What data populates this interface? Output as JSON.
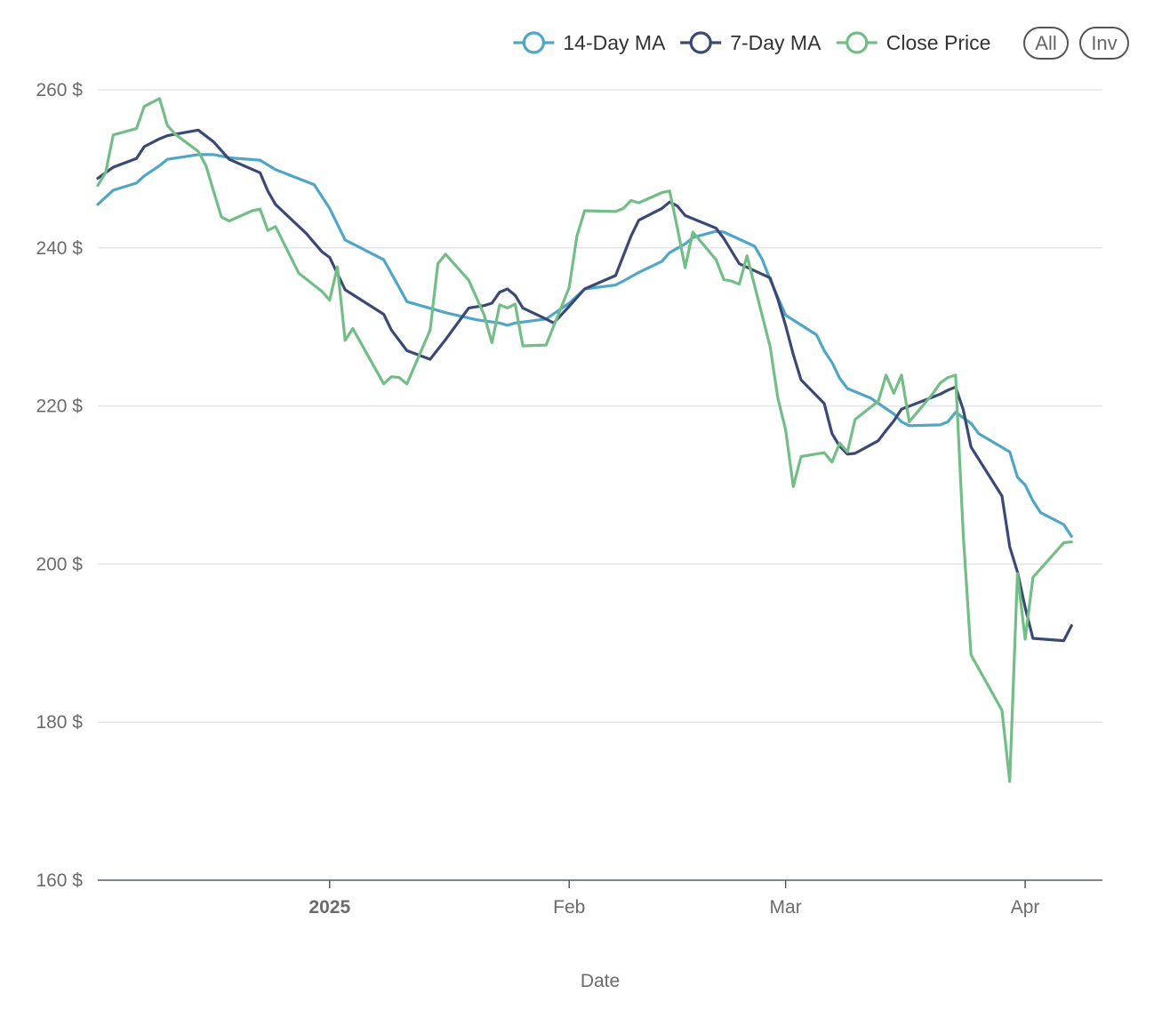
{
  "chart_data": {
    "type": "line",
    "xlabel": "Date",
    "ylabel": "",
    "ylim": [
      160,
      260
    ],
    "y_ticks": [
      160,
      180,
      200,
      220,
      240,
      260
    ],
    "y_tick_suffix": " $",
    "x_range": [
      "2024-12-02",
      "2025-04-11"
    ],
    "x_ticks": [
      {
        "date": "2025-01-01",
        "label": "2025",
        "bold": true
      },
      {
        "date": "2025-02-01",
        "label": "Feb",
        "bold": false
      },
      {
        "date": "2025-03-01",
        "label": "Mar",
        "bold": false
      },
      {
        "date": "2025-04-01",
        "label": "Apr",
        "bold": false
      }
    ],
    "grid": "horizontal",
    "legend_position": "top-right",
    "series": [
      {
        "name": "14-Day MA",
        "color": "#4fa6c6",
        "points": [
          [
            "2024-12-02",
            245.5
          ],
          [
            "2024-12-04",
            247.3
          ],
          [
            "2024-12-07",
            248.2
          ],
          [
            "2024-12-08",
            249.1
          ],
          [
            "2024-12-10",
            250.4
          ],
          [
            "2024-12-11",
            251.2
          ],
          [
            "2024-12-15",
            251.8
          ],
          [
            "2024-12-17",
            251.8
          ],
          [
            "2024-12-19",
            251.4
          ],
          [
            "2024-12-23",
            251.1
          ],
          [
            "2024-12-25",
            249.9
          ],
          [
            "2024-12-30",
            248.0
          ],
          [
            "2025-01-01",
            245.0
          ],
          [
            "2025-01-03",
            241.0
          ],
          [
            "2025-01-08",
            238.5
          ],
          [
            "2025-01-10",
            235.0
          ],
          [
            "2025-01-11",
            233.2
          ],
          [
            "2025-01-16",
            231.8
          ],
          [
            "2025-01-20",
            230.9
          ],
          [
            "2025-01-23",
            230.5
          ],
          [
            "2025-01-24",
            230.2
          ],
          [
            "2025-01-25",
            230.5
          ],
          [
            "2025-01-29",
            231.0
          ],
          [
            "2025-02-01",
            233.0
          ],
          [
            "2025-02-03",
            234.8
          ],
          [
            "2025-02-07",
            235.3
          ],
          [
            "2025-02-08",
            235.8
          ],
          [
            "2025-02-10",
            236.9
          ],
          [
            "2025-02-13",
            238.3
          ],
          [
            "2025-02-14",
            239.4
          ],
          [
            "2025-02-16",
            240.5
          ],
          [
            "2025-02-17",
            241.3
          ],
          [
            "2025-02-20",
            242.1
          ],
          [
            "2025-02-21",
            242.0
          ],
          [
            "2025-02-25",
            240.2
          ],
          [
            "2025-02-26",
            238.5
          ],
          [
            "2025-02-27",
            236.0
          ],
          [
            "2025-03-01",
            231.5
          ],
          [
            "2025-03-05",
            229.0
          ],
          [
            "2025-03-06",
            227.0
          ],
          [
            "2025-03-07",
            225.5
          ],
          [
            "2025-03-08",
            223.5
          ],
          [
            "2025-03-09",
            222.2
          ],
          [
            "2025-03-12",
            221.0
          ],
          [
            "2025-03-15",
            219.0
          ],
          [
            "2025-03-16",
            218.0
          ],
          [
            "2025-03-17",
            217.5
          ],
          [
            "2025-03-21",
            217.6
          ],
          [
            "2025-03-22",
            218.0
          ],
          [
            "2025-03-23",
            219.2
          ],
          [
            "2025-03-25",
            217.8
          ],
          [
            "2025-03-26",
            216.5
          ],
          [
            "2025-03-30",
            214.2
          ],
          [
            "2025-03-31",
            211.0
          ],
          [
            "2025-04-01",
            210.0
          ],
          [
            "2025-04-02",
            208.0
          ],
          [
            "2025-04-03",
            206.5
          ],
          [
            "2025-04-06",
            205.0
          ],
          [
            "2025-04-07",
            203.5
          ]
        ]
      },
      {
        "name": "7-Day MA",
        "color": "#3b4a75",
        "points": [
          [
            "2024-12-02",
            248.8
          ],
          [
            "2024-12-04",
            250.2
          ],
          [
            "2024-12-07",
            251.3
          ],
          [
            "2024-12-08",
            252.8
          ],
          [
            "2024-12-10",
            253.8
          ],
          [
            "2024-12-11",
            254.2
          ],
          [
            "2024-12-15",
            254.9
          ],
          [
            "2024-12-17",
            253.4
          ],
          [
            "2024-12-19",
            251.2
          ],
          [
            "2024-12-23",
            249.5
          ],
          [
            "2024-12-24",
            247.2
          ],
          [
            "2024-12-25",
            245.5
          ],
          [
            "2024-12-29",
            241.8
          ],
          [
            "2024-12-31",
            239.5
          ],
          [
            "2025-01-01",
            238.8
          ],
          [
            "2025-01-03",
            234.7
          ],
          [
            "2025-01-08",
            231.6
          ],
          [
            "2025-01-09",
            229.6
          ],
          [
            "2025-01-11",
            227.0
          ],
          [
            "2025-01-14",
            225.9
          ],
          [
            "2025-01-16",
            228.4
          ],
          [
            "2025-01-19",
            232.4
          ],
          [
            "2025-01-21",
            232.7
          ],
          [
            "2025-01-22",
            233.0
          ],
          [
            "2025-01-23",
            234.4
          ],
          [
            "2025-01-24",
            234.8
          ],
          [
            "2025-01-25",
            234.0
          ],
          [
            "2025-01-26",
            232.4
          ],
          [
            "2025-01-29",
            231.0
          ],
          [
            "2025-01-30",
            230.5
          ],
          [
            "2025-02-01",
            232.6
          ],
          [
            "2025-02-03",
            234.8
          ],
          [
            "2025-02-07",
            236.5
          ],
          [
            "2025-02-09",
            241.5
          ],
          [
            "2025-02-10",
            243.5
          ],
          [
            "2025-02-13",
            245.0
          ],
          [
            "2025-02-14",
            245.8
          ],
          [
            "2025-02-15",
            245.3
          ],
          [
            "2025-02-16",
            244.1
          ],
          [
            "2025-02-20",
            242.5
          ],
          [
            "2025-02-21",
            241.2
          ],
          [
            "2025-02-23",
            238.0
          ],
          [
            "2025-02-27",
            236.2
          ],
          [
            "2025-02-28",
            233.5
          ],
          [
            "2025-03-01",
            230.2
          ],
          [
            "2025-03-02",
            226.5
          ],
          [
            "2025-03-03",
            223.3
          ],
          [
            "2025-03-06",
            220.3
          ],
          [
            "2025-03-07",
            216.5
          ],
          [
            "2025-03-08",
            214.9
          ],
          [
            "2025-03-09",
            213.9
          ],
          [
            "2025-03-10",
            214.0
          ],
          [
            "2025-03-13",
            215.6
          ],
          [
            "2025-03-14",
            216.9
          ],
          [
            "2025-03-15",
            218.1
          ],
          [
            "2025-03-16",
            219.6
          ],
          [
            "2025-03-20",
            221.1
          ],
          [
            "2025-03-21",
            221.5
          ],
          [
            "2025-03-22",
            222.0
          ],
          [
            "2025-03-23",
            222.4
          ],
          [
            "2025-03-24",
            219.5
          ],
          [
            "2025-03-25",
            214.8
          ],
          [
            "2025-03-29",
            208.6
          ],
          [
            "2025-03-30",
            202.2
          ],
          [
            "2025-03-31",
            199.0
          ],
          [
            "2025-04-01",
            194.5
          ],
          [
            "2025-04-02",
            190.6
          ],
          [
            "2025-04-06",
            190.3
          ],
          [
            "2025-04-07",
            192.2
          ]
        ]
      },
      {
        "name": "Close Price",
        "color": "#72be86",
        "points": [
          [
            "2024-12-02",
            247.9
          ],
          [
            "2024-12-03",
            249.5
          ],
          [
            "2024-12-04",
            254.3
          ],
          [
            "2024-12-07",
            255.1
          ],
          [
            "2024-12-08",
            257.9
          ],
          [
            "2024-12-10",
            258.9
          ],
          [
            "2024-12-11",
            255.5
          ],
          [
            "2024-12-12",
            254.4
          ],
          [
            "2024-12-15",
            252.2
          ],
          [
            "2024-12-16",
            250.4
          ],
          [
            "2024-12-17",
            247.1
          ],
          [
            "2024-12-18",
            243.9
          ],
          [
            "2024-12-19",
            243.4
          ],
          [
            "2024-12-22",
            244.7
          ],
          [
            "2024-12-23",
            244.9
          ],
          [
            "2024-12-24",
            242.2
          ],
          [
            "2024-12-25",
            242.7
          ],
          [
            "2024-12-28",
            236.8
          ],
          [
            "2024-12-31",
            234.5
          ],
          [
            "2025-01-01",
            233.4
          ],
          [
            "2025-01-02",
            237.6
          ],
          [
            "2025-01-03",
            228.3
          ],
          [
            "2025-01-04",
            229.8
          ],
          [
            "2025-01-08",
            222.8
          ],
          [
            "2025-01-09",
            223.7
          ],
          [
            "2025-01-10",
            223.6
          ],
          [
            "2025-01-11",
            222.8
          ],
          [
            "2025-01-14",
            229.6
          ],
          [
            "2025-01-15",
            238.0
          ],
          [
            "2025-01-16",
            239.2
          ],
          [
            "2025-01-19",
            235.9
          ],
          [
            "2025-01-21",
            231.5
          ],
          [
            "2025-01-22",
            228.0
          ],
          [
            "2025-01-23",
            232.8
          ],
          [
            "2025-01-24",
            232.4
          ],
          [
            "2025-01-25",
            232.9
          ],
          [
            "2025-01-26",
            227.6
          ],
          [
            "2025-01-29",
            227.7
          ],
          [
            "2025-02-01",
            235.0
          ],
          [
            "2025-02-02",
            241.5
          ],
          [
            "2025-02-03",
            244.7
          ],
          [
            "2025-02-07",
            244.6
          ],
          [
            "2025-02-08",
            245.0
          ],
          [
            "2025-02-09",
            246.0
          ],
          [
            "2025-02-10",
            245.7
          ],
          [
            "2025-02-13",
            247.0
          ],
          [
            "2025-02-14",
            247.2
          ],
          [
            "2025-02-15",
            242.5
          ],
          [
            "2025-02-16",
            237.5
          ],
          [
            "2025-02-17",
            242.0
          ],
          [
            "2025-02-20",
            238.5
          ],
          [
            "2025-02-21",
            236.0
          ],
          [
            "2025-02-22",
            235.8
          ],
          [
            "2025-02-23",
            235.4
          ],
          [
            "2025-02-24",
            239.0
          ],
          [
            "2025-02-27",
            227.5
          ],
          [
            "2025-02-28",
            221.0
          ],
          [
            "2025-03-01",
            217.0
          ],
          [
            "2025-03-02",
            209.8
          ],
          [
            "2025-03-03",
            213.6
          ],
          [
            "2025-03-06",
            214.1
          ],
          [
            "2025-03-07",
            212.9
          ],
          [
            "2025-03-08",
            215.3
          ],
          [
            "2025-03-09",
            214.2
          ],
          [
            "2025-03-10",
            218.3
          ],
          [
            "2025-03-13",
            220.6
          ],
          [
            "2025-03-14",
            223.9
          ],
          [
            "2025-03-15",
            221.6
          ],
          [
            "2025-03-16",
            223.9
          ],
          [
            "2025-03-17",
            218.0
          ],
          [
            "2025-03-20",
            221.5
          ],
          [
            "2025-03-21",
            222.9
          ],
          [
            "2025-03-22",
            223.6
          ],
          [
            "2025-03-23",
            223.9
          ],
          [
            "2025-03-24",
            203.6
          ],
          [
            "2025-03-25",
            188.5
          ],
          [
            "2025-03-29",
            181.5
          ],
          [
            "2025-03-30",
            172.5
          ],
          [
            "2025-03-31",
            198.8
          ],
          [
            "2025-04-01",
            190.5
          ],
          [
            "2025-04-02",
            198.3
          ],
          [
            "2025-04-06",
            202.7
          ],
          [
            "2025-04-07",
            202.8
          ]
        ]
      }
    ]
  },
  "controls": {
    "all_label": "All",
    "inv_label": "Inv"
  }
}
